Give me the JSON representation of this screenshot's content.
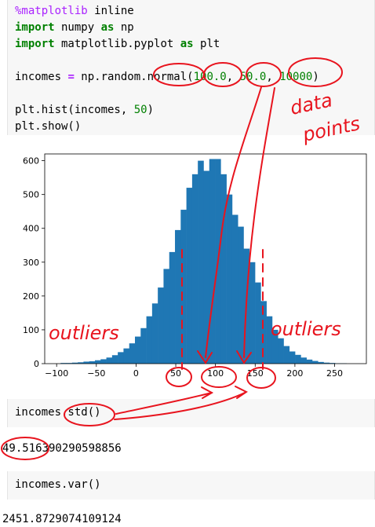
{
  "cell1": {
    "lines": [
      [
        {
          "t": "%matplotlib",
          "c": "magic"
        },
        {
          "t": " inline",
          "c": ""
        }
      ],
      [
        {
          "t": "import",
          "c": "kw"
        },
        {
          "t": " numpy ",
          "c": ""
        },
        {
          "t": "as",
          "c": "kw"
        },
        {
          "t": " np",
          "c": ""
        }
      ],
      [
        {
          "t": "import",
          "c": "kw"
        },
        {
          "t": " matplotlib.pyplot ",
          "c": ""
        },
        {
          "t": "as",
          "c": "kw"
        },
        {
          "t": " plt",
          "c": ""
        }
      ],
      [
        {
          "t": "",
          "c": ""
        }
      ],
      [
        {
          "t": "incomes ",
          "c": ""
        },
        {
          "t": "=",
          "c": "op"
        },
        {
          "t": " np.random.normal(",
          "c": ""
        },
        {
          "t": "100.0",
          "c": "num"
        },
        {
          "t": ", ",
          "c": ""
        },
        {
          "t": "50.0",
          "c": "num"
        },
        {
          "t": ", ",
          "c": ""
        },
        {
          "t": "10000",
          "c": "num"
        },
        {
          "t": ")",
          "c": ""
        }
      ],
      [
        {
          "t": "",
          "c": ""
        }
      ],
      [
        {
          "t": "plt.hist(incomes, ",
          "c": ""
        },
        {
          "t": "50",
          "c": "num"
        },
        {
          "t": ")",
          "c": ""
        }
      ],
      [
        {
          "t": "plt.show()",
          "c": ""
        }
      ]
    ]
  },
  "cell2": {
    "code": "incomes.std()"
  },
  "output2": {
    "text": "49.51639029059885​6"
  },
  "cell3": {
    "code": "incomes.var()"
  },
  "output3": {
    "text": "2451.8729074109124"
  },
  "annotations": {
    "data_points": "data\npoints",
    "outliers_left": "outliers",
    "outliers_right": "outliers",
    "color": "#e8141e"
  },
  "chart_data": {
    "type": "bar",
    "bar_color": "#1f77b4",
    "xlim": [
      -115,
      290
    ],
    "ylim": [
      0,
      620
    ],
    "xticks": [
      -100,
      -50,
      0,
      50,
      100,
      150,
      200,
      250
    ],
    "yticks": [
      0,
      100,
      200,
      300,
      400,
      500,
      600
    ],
    "bin_start": -95,
    "bin_width": 7.2,
    "values": [
      2,
      2,
      3,
      4,
      6,
      7,
      10,
      13,
      18,
      25,
      34,
      45,
      60,
      80,
      105,
      140,
      178,
      225,
      280,
      330,
      395,
      455,
      520,
      560,
      600,
      570,
      605,
      605,
      560,
      500,
      440,
      405,
      340,
      300,
      240,
      185,
      140,
      100,
      75,
      52,
      36,
      26,
      18,
      12,
      8,
      5,
      3,
      2,
      1,
      1
    ]
  }
}
